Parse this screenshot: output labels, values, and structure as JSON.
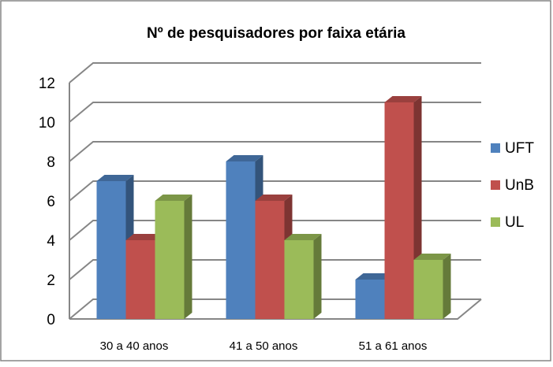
{
  "chart_data": {
    "type": "bar3d",
    "title": "Nº de pesquisadores por faixa etária",
    "categories": [
      "30 a 40 anos",
      "41 a 50 anos",
      "51 a 61 anos"
    ],
    "series": [
      {
        "name": "UFT",
        "color": "#4f81bd",
        "values": [
          7,
          8,
          2
        ]
      },
      {
        "name": "UnB",
        "color": "#c0504d",
        "values": [
          4,
          6,
          11
        ]
      },
      {
        "name": "UL",
        "color": "#9bbb59",
        "values": [
          6,
          4,
          3
        ]
      }
    ],
    "ylim": [
      0,
      12
    ],
    "yticks": [
      0,
      2,
      4,
      6,
      8,
      10,
      12
    ],
    "grid": true,
    "legend": "right"
  }
}
